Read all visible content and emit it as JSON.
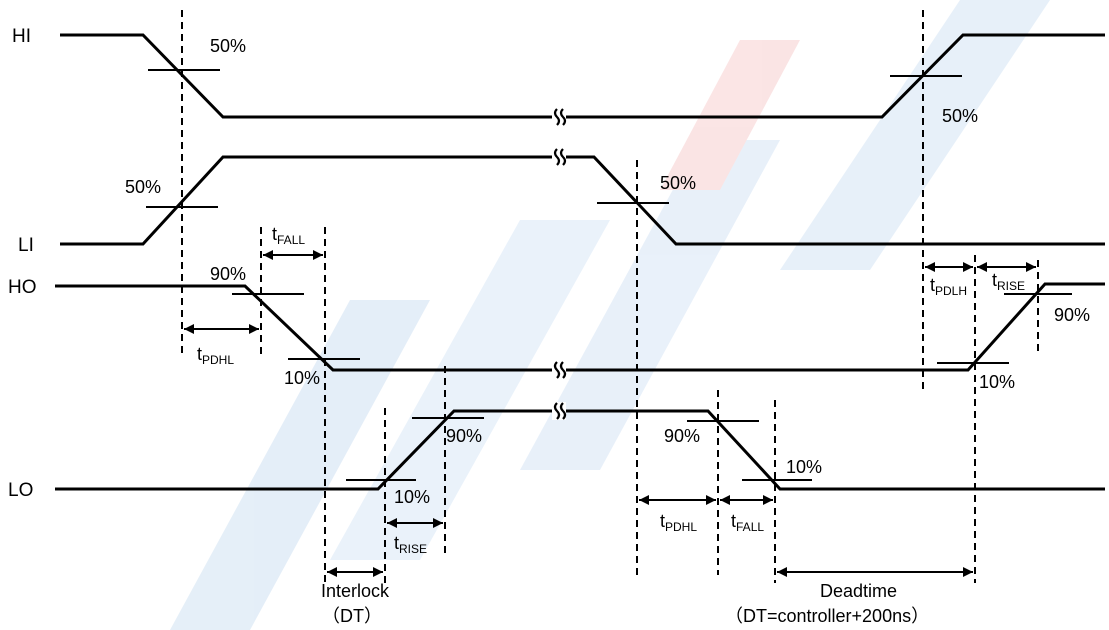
{
  "signals": {
    "hi": "HI",
    "li": "LI",
    "ho": "HO",
    "lo": "LO"
  },
  "thresholds": {
    "hi_fall_50": "50%",
    "hi_rise_50": "50%",
    "li_rise_50": "50%",
    "li_fall_50": "50%",
    "ho_fall_90": "90%",
    "ho_fall_10": "10%",
    "ho_rise_10": "10%",
    "ho_rise_90": "90%",
    "lo_rise_10": "10%",
    "lo_rise_90": "90%",
    "lo_fall_90": "90%",
    "lo_fall_10": "10%"
  },
  "timing": {
    "t_fall_1": {
      "base": "t",
      "sub": "FALL"
    },
    "t_pdhl_1": {
      "base": "t",
      "sub": "PDHL"
    },
    "t_rise_1": {
      "base": "t",
      "sub": "RISE"
    },
    "t_pdhl_2": {
      "base": "t",
      "sub": "PDHL"
    },
    "t_fall_2": {
      "base": "t",
      "sub": "FALL"
    },
    "t_pdlh": {
      "base": "t",
      "sub": "PDLH"
    },
    "t_rise_2": {
      "base": "t",
      "sub": "RISE"
    }
  },
  "annotations": {
    "interlock": "Interlock",
    "interlock_dt": "（DT）",
    "deadtime": "Deadtime",
    "deadtime_dt": "（DT=controller+200ns）"
  },
  "colors": {
    "waveform": "#000000",
    "watermark_blue": "#dce9f6",
    "watermark_red": "#f9dcdc"
  }
}
